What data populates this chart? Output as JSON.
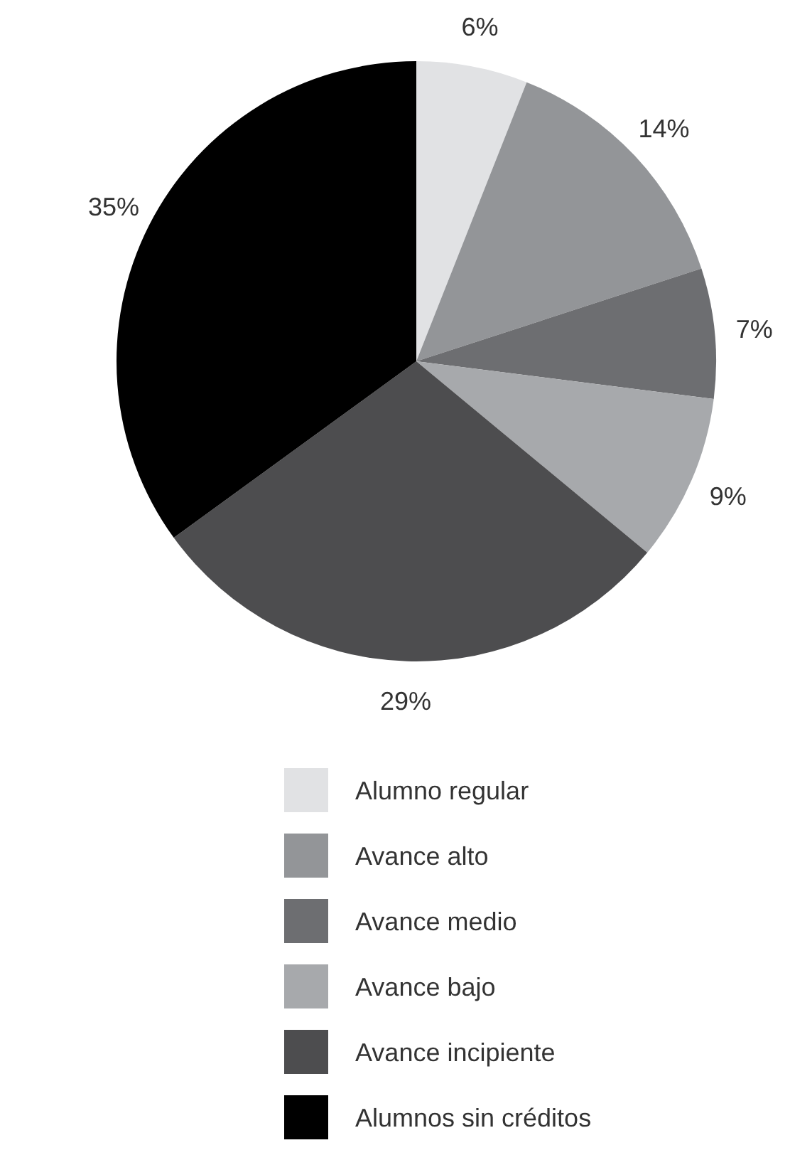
{
  "chart_data": {
    "type": "pie",
    "categories": [
      "Alumno regular",
      "Avance alto",
      "Avance medio",
      "Avance bajo",
      "Avance incipiente",
      "Alumnos sin créditos"
    ],
    "values": [
      6,
      14,
      7,
      9,
      29,
      35
    ],
    "colors": [
      "#e1e2e4",
      "#939598",
      "#6d6e71",
      "#a7a9ac",
      "#4d4d4f",
      "#000000"
    ],
    "value_labels": [
      "6%",
      "14%",
      "7%",
      "9%",
      "29%",
      "35%"
    ],
    "legend": "bottom"
  }
}
